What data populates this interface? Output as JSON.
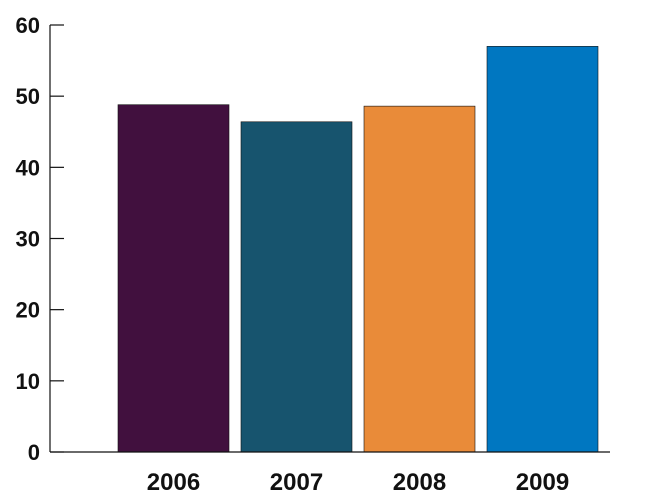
{
  "chart_data": {
    "type": "bar",
    "title": "",
    "xlabel": "",
    "ylabel": "",
    "categories": [
      "2006",
      "2007",
      "2008",
      "2009"
    ],
    "values": [
      48.8,
      46.4,
      48.6,
      57.0
    ],
    "colors": [
      "#41103e",
      "#17546e",
      "#e98b39",
      "#0077c1"
    ],
    "ylim": [
      0,
      60
    ],
    "yticks": [
      0,
      10,
      20,
      30,
      40,
      50,
      60
    ],
    "grid": false,
    "legend": "none"
  }
}
